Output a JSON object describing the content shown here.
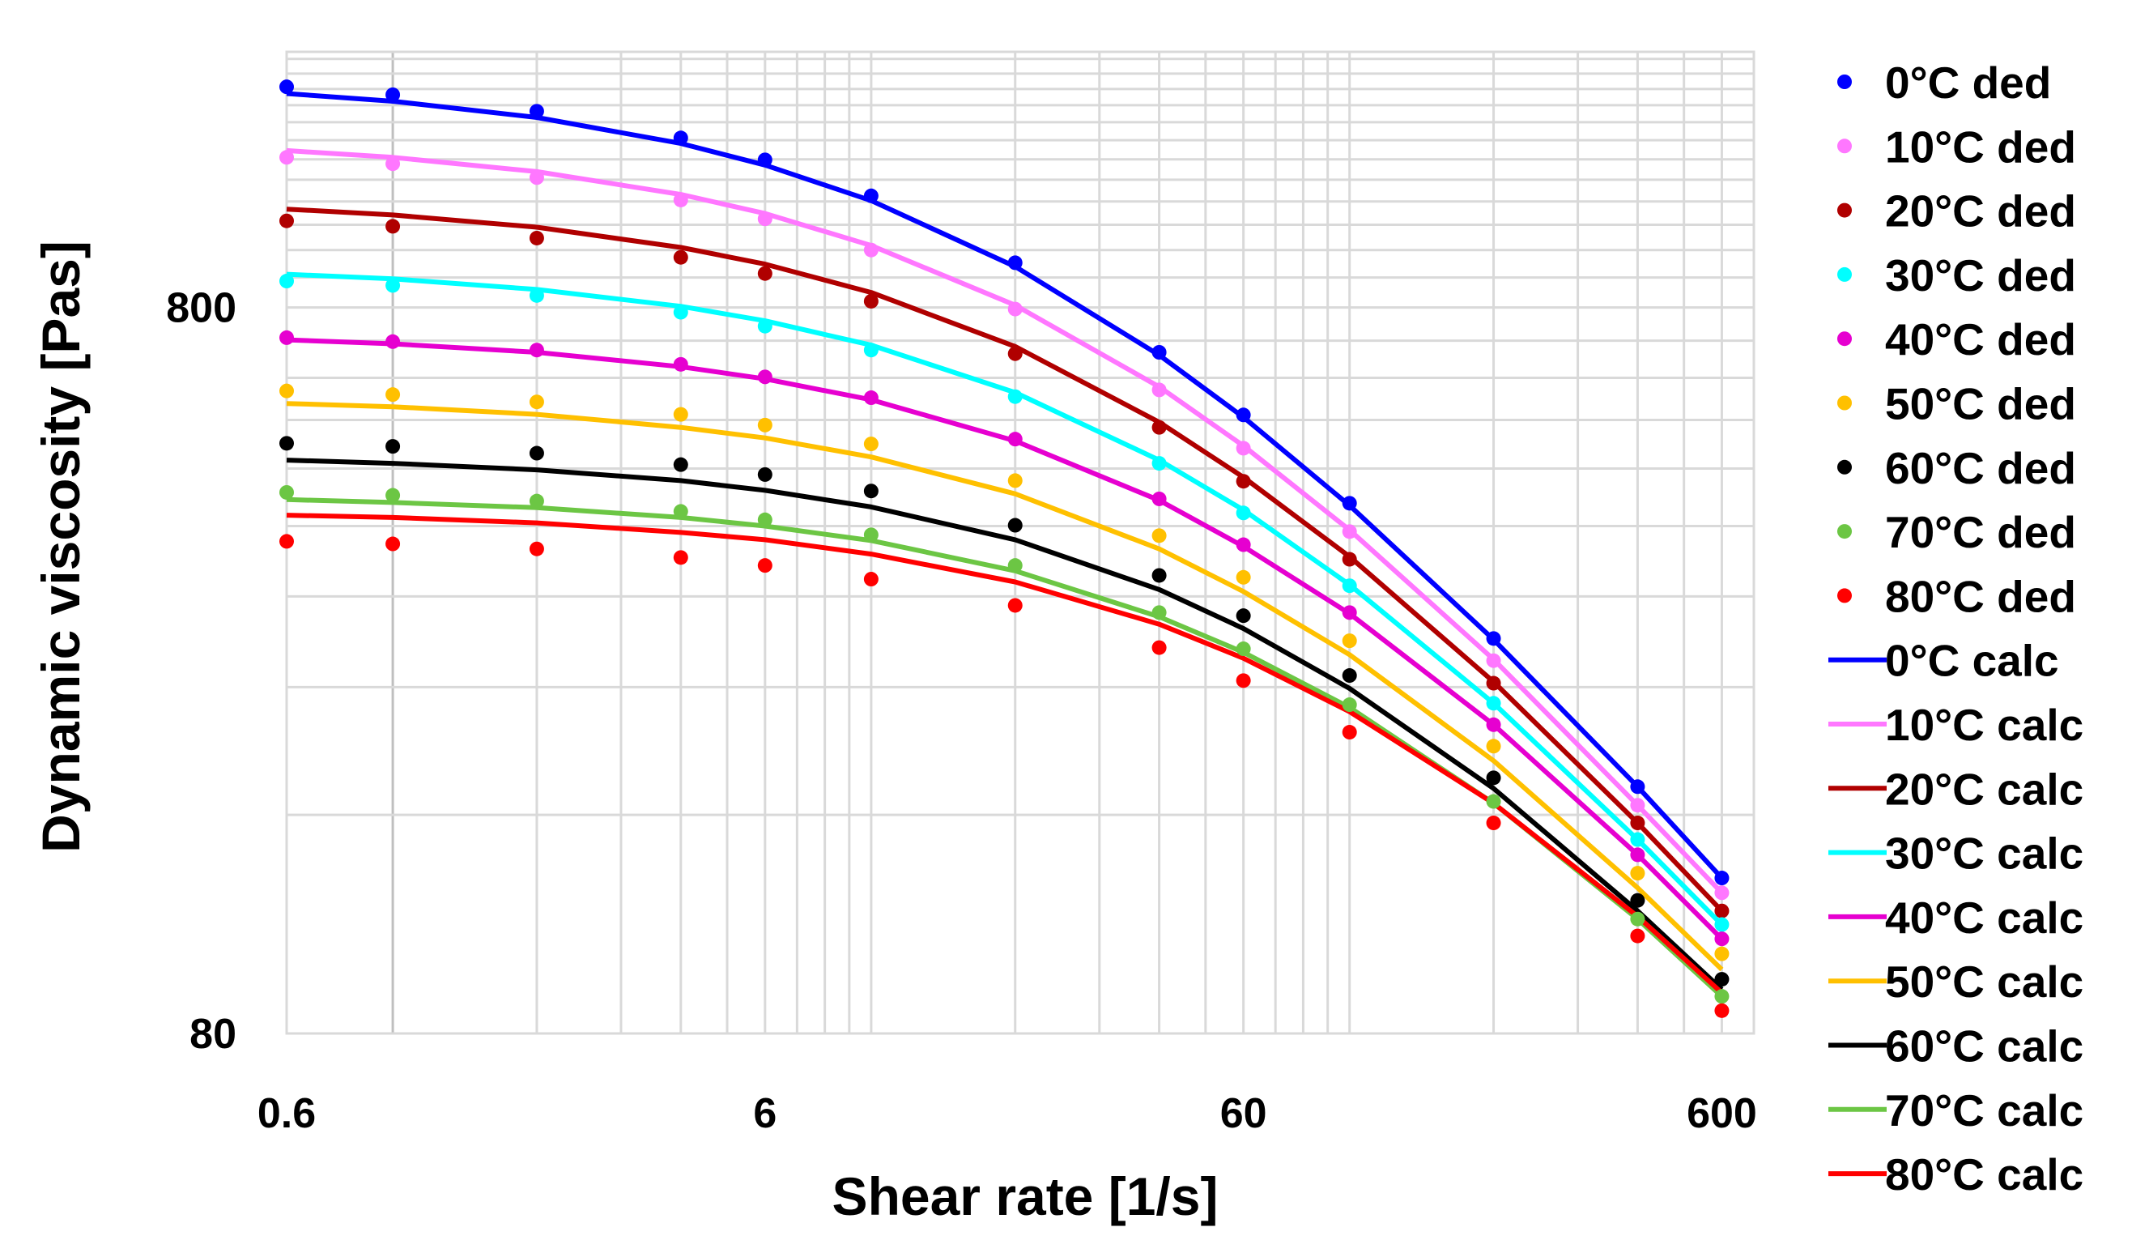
{
  "chart_data": {
    "type": "scatter",
    "title": "",
    "xlabel": "Shear rate [1/s]",
    "ylabel": "Dynamic viscosity [Pas]",
    "x_scale": "log",
    "y_scale": "log",
    "xlim": [
      0.6,
      700
    ],
    "ylim": [
      80,
      1800
    ],
    "x_ticks": [
      0.6,
      6,
      60,
      600
    ],
    "x_tick_labels": [
      "0.6",
      "6",
      "60",
      "600"
    ],
    "y_ticks": [
      80,
      800
    ],
    "y_tick_labels": [
      "80",
      "800"
    ],
    "grid": true,
    "legend_position": "right",
    "x": [
      0.6,
      1,
      2,
      4,
      6,
      10,
      20,
      40,
      60,
      100,
      200,
      400,
      600
    ],
    "series": [
      {
        "name": "0°C ded",
        "style": "markers",
        "color": "#0000FF",
        "values": [
          1611,
          1571,
          1491,
          1370,
          1278,
          1140,
          922,
          694,
          569,
          430,
          280,
          175,
          131
        ]
      },
      {
        "name": "10°C ded",
        "style": "markers",
        "color": "#FF77FF",
        "values": [
          1288,
          1262,
          1208,
          1125,
          1060,
          960,
          796,
          616,
          512,
          393,
          261,
          165,
          125
        ]
      },
      {
        "name": "20°C ded",
        "style": "markers",
        "color": "#B00000",
        "values": [
          1053,
          1035,
          997,
          938,
          891,
          816,
          691,
          547,
          461,
          360,
          243,
          156,
          118
        ]
      },
      {
        "name": "30°C ded",
        "style": "markers",
        "color": "#00FFFF",
        "values": [
          870,
          858,
          831,
          788,
          754,
          699,
          603,
          488,
          417,
          331,
          228,
          148,
          113
        ]
      },
      {
        "name": "40°C ded",
        "style": "markers",
        "color": "#E600D0",
        "values": [
          727,
          718,
          699,
          668,
          642,
          601,
          527,
          436,
          377,
          304,
          213,
          141,
          108
        ]
      },
      {
        "name": "50°C ded",
        "style": "markers",
        "color": "#FFC000",
        "values": [
          614,
          607,
          593,
          570,
          551,
          519,
          462,
          388,
          340,
          278,
          199,
          133,
          103
        ]
      },
      {
        "name": "60°C ded",
        "style": "markers",
        "color": "#000000",
        "values": [
          520,
          515,
          504,
          486,
          471,
          447,
          401,
          342,
          301,
          249,
          180,
          122,
          95
        ]
      },
      {
        "name": "70°C ded",
        "style": "markers",
        "color": "#6CC644",
        "values": [
          445,
          441,
          433,
          419,
          408,
          389,
          353,
          304,
          271,
          227,
          167,
          115,
          90
        ]
      },
      {
        "name": "80°C ded",
        "style": "markers",
        "color": "#FF0000",
        "values": [
          381,
          378,
          372,
          362,
          353,
          338,
          311,
          272,
          245,
          208,
          156,
          109,
          86
        ]
      },
      {
        "name": "0°C calc",
        "style": "line",
        "color": "#0000FF",
        "values": [
          1577,
          1539,
          1462,
          1346,
          1257,
          1123,
          911,
          688,
          565,
          427,
          279,
          175,
          131
        ]
      },
      {
        "name": "10°C calc",
        "style": "line",
        "color": "#FF77FF",
        "values": [
          1316,
          1288,
          1231,
          1145,
          1078,
          974,
          806,
          622,
          516,
          395,
          262,
          165,
          125
        ]
      },
      {
        "name": "20°C calc",
        "style": "line",
        "color": "#B00000",
        "values": [
          1093,
          1073,
          1032,
          968,
          918,
          839,
          707,
          556,
          467,
          363,
          244,
          156,
          118
        ]
      },
      {
        "name": "30°C calc",
        "style": "line",
        "color": "#00FFFF",
        "values": [
          889,
          876,
          847,
          803,
          767,
          710,
          611,
          493,
          421,
          332,
          228,
          148,
          113
        ]
      },
      {
        "name": "40°C calc",
        "style": "line",
        "color": "#E600D0",
        "values": [
          722,
          713,
          694,
          663,
          638,
          597,
          524,
          434,
          375,
          303,
          213,
          141,
          108
        ]
      },
      {
        "name": "50°C calc",
        "style": "line",
        "color": "#FFC000",
        "values": [
          590,
          584,
          570,
          547,
          529,
          498,
          443,
          372,
          325,
          266,
          190,
          127,
          98
        ]
      },
      {
        "name": "60°C calc",
        "style": "line",
        "color": "#000000",
        "values": [
          493,
          488,
          478,
          462,
          448,
          425,
          383,
          327,
          289,
          239,
          174,
          118,
          92
        ]
      },
      {
        "name": "70°C calc",
        "style": "line",
        "color": "#6CC644",
        "values": [
          435,
          431,
          424,
          411,
          400,
          382,
          347,
          300,
          268,
          225,
          166,
          115,
          90
        ]
      },
      {
        "name": "80°C calc",
        "style": "line",
        "color": "#FF0000",
        "values": [
          414,
          411,
          404,
          392,
          383,
          366,
          335,
          293,
          263,
          222,
          166,
          116,
          91
        ]
      }
    ]
  }
}
